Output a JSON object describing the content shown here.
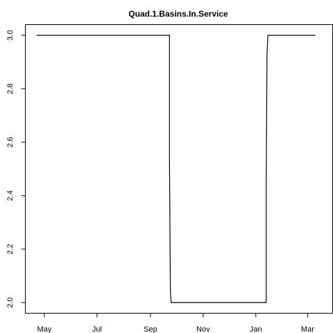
{
  "chart_data": {
    "type": "line",
    "title": "Quad.1.Basins.In.Service",
    "xlabel": "",
    "ylabel": "",
    "x_ticks": [
      {
        "label": "May",
        "date": "2011-05-01"
      },
      {
        "label": "Jul",
        "date": "2011-07-01"
      },
      {
        "label": "Sep",
        "date": "2011-09-01"
      },
      {
        "label": "Nov",
        "date": "2011-11-01"
      },
      {
        "label": "Jan",
        "date": "2012-01-01"
      },
      {
        "label": "Mar",
        "date": "2012-03-01"
      }
    ],
    "xlim": [
      "2011-04-09",
      "2012-03-30"
    ],
    "y_ticks": [
      "2.0",
      "2.2",
      "2.4",
      "2.6",
      "2.8",
      "3.0"
    ],
    "ylim": [
      1.96,
      3.04
    ],
    "grid": false,
    "series": [
      {
        "points": [
          {
            "x": "2011-04-22",
            "y": 3.0
          },
          {
            "x": "2011-09-23",
            "y": 3.0
          },
          {
            "x": "2011-09-23",
            "y": 2.54
          },
          {
            "x": "2011-09-24",
            "y": 2.04
          },
          {
            "x": "2011-09-25",
            "y": 2.0
          },
          {
            "x": "2012-01-13",
            "y": 2.0
          },
          {
            "x": "2012-01-13",
            "y": 2.43
          },
          {
            "x": "2012-01-14",
            "y": 2.93
          },
          {
            "x": "2012-01-15",
            "y": 3.0
          },
          {
            "x": "2012-03-10",
            "y": 3.0
          }
        ]
      }
    ]
  }
}
